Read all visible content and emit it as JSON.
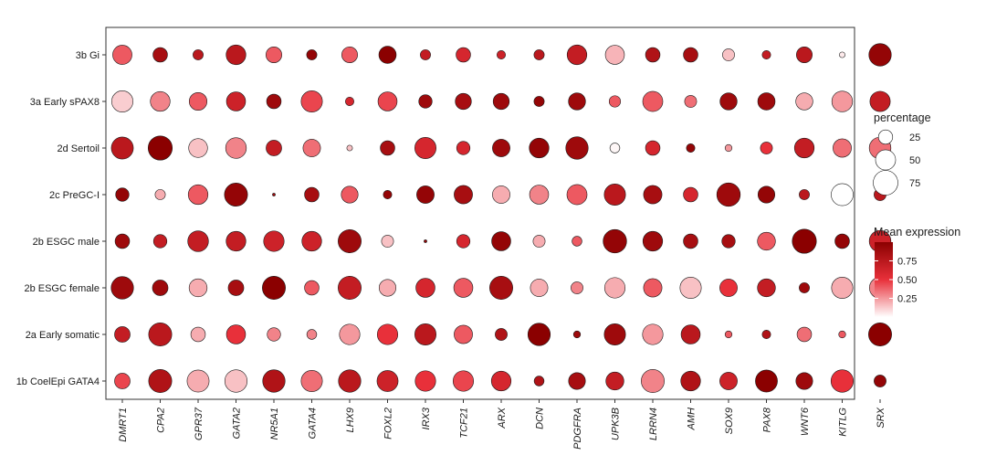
{
  "chart_data": {
    "type": "dotplot",
    "title": "",
    "xlabel": "",
    "ylabel": "",
    "genes": [
      "DMRT1",
      "CPA2",
      "GPR37",
      "GATA2",
      "NR5A1",
      "GATA4",
      "LHX9",
      "FOXL2",
      "IRX3",
      "TCF21",
      "ARX",
      "DCN",
      "PDGFRA",
      "UPK3B",
      "LRRN4",
      "AMH",
      "SOX9",
      "PAX8",
      "WNT6",
      "KITLG",
      "SRX"
    ],
    "cell_types": [
      "3b Gi",
      "3a Early sPAX8",
      "2d Sertoil",
      "2c PreGC-I",
      "2b ESGC male",
      "2b ESGC female",
      "2a Early somatic",
      "1b CoelEpi GATA4"
    ],
    "color_scale": {
      "low": "#ffffff",
      "mid": "#e8303a",
      "high": "#8b0000",
      "range": [
        0,
        1
      ]
    },
    "size_legend": {
      "title": "percentage",
      "values": [
        25,
        50,
        75
      ]
    },
    "color_legend": {
      "title": "Mean expression",
      "ticks": [
        0.25,
        0.5,
        0.75
      ]
    },
    "rows": [
      {
        "cell_type": "3b Gi",
        "percentage": [
          46,
          26,
          13,
          48,
          31,
          13,
          31,
          37,
          13,
          26,
          9,
          13,
          48,
          45,
          26,
          26,
          18,
          9,
          31,
          4,
          62
        ],
        "expression": [
          0.4,
          0.85,
          0.75,
          0.75,
          0.4,
          0.95,
          0.4,
          1.0,
          0.7,
          0.6,
          0.65,
          0.75,
          0.7,
          0.18,
          0.8,
          0.85,
          0.15,
          0.7,
          0.75,
          0.05,
          0.95
        ]
      },
      {
        "cell_type": "3a Early sPAX8",
        "percentage": [
          56,
          48,
          39,
          45,
          26,
          56,
          9,
          45,
          22,
          32,
          32,
          13,
          36,
          16,
          50,
          18,
          36,
          37,
          36,
          53,
          51
        ],
        "expression": [
          0.12,
          0.3,
          0.4,
          0.65,
          0.9,
          0.45,
          0.6,
          0.45,
          0.9,
          0.85,
          0.9,
          0.95,
          0.9,
          0.4,
          0.4,
          0.35,
          0.9,
          0.9,
          0.2,
          0.25,
          0.7
        ]
      },
      {
        "cell_type": "2d Sertoil",
        "percentage": [
          60,
          72,
          44,
          53,
          30,
          38,
          4,
          26,
          56,
          22,
          38,
          48,
          62,
          12,
          26,
          9,
          6,
          18,
          48,
          42,
          58
        ],
        "expression": [
          0.75,
          1.0,
          0.15,
          0.3,
          0.7,
          0.35,
          0.15,
          0.85,
          0.6,
          0.6,
          0.9,
          0.95,
          0.9,
          0.02,
          0.6,
          0.95,
          0.25,
          0.5,
          0.7,
          0.35,
          0.35
        ]
      },
      {
        "cell_type": "2c PreGC-I",
        "percentage": [
          22,
          13,
          48,
          66,
          1,
          26,
          35,
          9,
          38,
          42,
          38,
          45,
          50,
          56,
          42,
          26,
          68,
          35,
          13,
          60,
          18
        ],
        "expression": [
          0.95,
          0.2,
          0.4,
          0.95,
          0.9,
          0.85,
          0.4,
          0.95,
          0.95,
          0.85,
          0.2,
          0.3,
          0.4,
          0.75,
          0.85,
          0.6,
          0.9,
          0.95,
          0.75,
          0.0,
          0.75
        ]
      },
      {
        "cell_type": "2b ESGC male",
        "percentage": [
          26,
          22,
          53,
          48,
          52,
          48,
          66,
          18,
          1,
          22,
          45,
          18,
          12,
          68,
          48,
          26,
          22,
          40,
          72,
          26,
          58
        ],
        "expression": [
          0.9,
          0.7,
          0.7,
          0.7,
          0.65,
          0.65,
          0.9,
          0.15,
          0.95,
          0.6,
          0.95,
          0.2,
          0.4,
          0.95,
          0.9,
          0.85,
          0.85,
          0.4,
          1.0,
          0.95,
          0.65
        ]
      },
      {
        "cell_type": "2b ESGC female",
        "percentage": [
          62,
          30,
          40,
          30,
          66,
          26,
          66,
          35,
          45,
          45,
          66,
          38,
          18,
          52,
          42,
          56,
          38,
          40,
          13,
          56,
          56
        ],
        "expression": [
          0.9,
          0.9,
          0.2,
          0.85,
          1.0,
          0.4,
          0.7,
          0.2,
          0.6,
          0.4,
          0.85,
          0.2,
          0.3,
          0.2,
          0.4,
          0.15,
          0.5,
          0.7,
          0.9,
          0.2,
          0.3
        ]
      },
      {
        "cell_type": "2a Early somatic",
        "percentage": [
          30,
          66,
          26,
          45,
          22,
          12,
          52,
          52,
          56,
          42,
          18,
          62,
          6,
          56,
          52,
          45,
          6,
          9,
          26,
          6,
          66
        ],
        "expression": [
          0.7,
          0.75,
          0.2,
          0.5,
          0.3,
          0.3,
          0.25,
          0.5,
          0.75,
          0.4,
          0.8,
          1.0,
          0.9,
          0.9,
          0.25,
          0.75,
          0.4,
          0.8,
          0.35,
          0.4,
          1.0
        ]
      },
      {
        "cell_type": "1b CoelEpi GATA4",
        "percentage": [
          30,
          66,
          60,
          62,
          62,
          56,
          62,
          55,
          52,
          52,
          48,
          12,
          35,
          40,
          66,
          48,
          38,
          60,
          35,
          62,
          18
        ],
        "expression": [
          0.45,
          0.8,
          0.2,
          0.15,
          0.8,
          0.35,
          0.75,
          0.65,
          0.5,
          0.45,
          0.6,
          0.8,
          0.85,
          0.7,
          0.3,
          0.8,
          0.65,
          1.0,
          0.9,
          0.5,
          0.95
        ]
      }
    ]
  }
}
